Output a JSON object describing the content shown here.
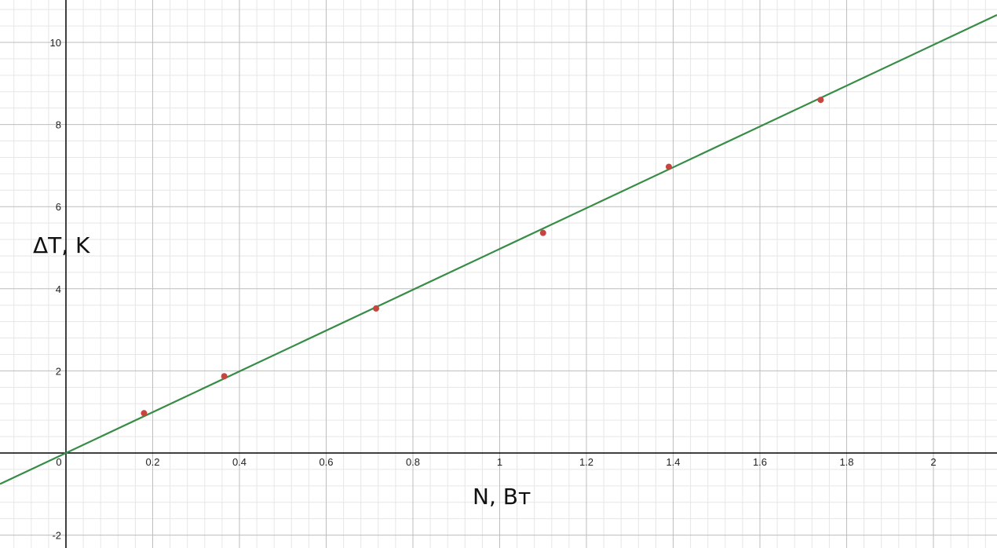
{
  "chart_data": {
    "type": "scatter",
    "xlabel": "N, Вт",
    "ylabel": "ΔT, K",
    "xlim": [
      -0.15,
      2.15
    ],
    "ylim": [
      -2.3,
      11.1
    ],
    "x_major_step": 0.2,
    "y_major_step": 2,
    "minor_divisions": 5,
    "grid": true,
    "x_tick_labels": [
      "0",
      "0.2",
      "0.4",
      "0.6",
      "0.8",
      "1",
      "1.2",
      "1.4",
      "1.6",
      "1.8",
      "2"
    ],
    "y_tick_labels": [
      "-2",
      "2",
      "4",
      "6",
      "8",
      "10"
    ],
    "points": [
      {
        "x": 0.18,
        "y": 0.97
      },
      {
        "x": 0.365,
        "y": 1.87
      },
      {
        "x": 0.715,
        "y": 3.52
      },
      {
        "x": 1.1,
        "y": 5.36
      },
      {
        "x": 1.39,
        "y": 6.97
      },
      {
        "x": 1.74,
        "y": 8.6
      }
    ],
    "fit_line": {
      "slope": 4.97,
      "intercept": 0
    }
  },
  "colors": {
    "point": "#c74440",
    "fit_line": "#388c46",
    "axis": "#000000",
    "major_grid": "#bdbdbd",
    "minor_grid": "#e6e6e6"
  }
}
